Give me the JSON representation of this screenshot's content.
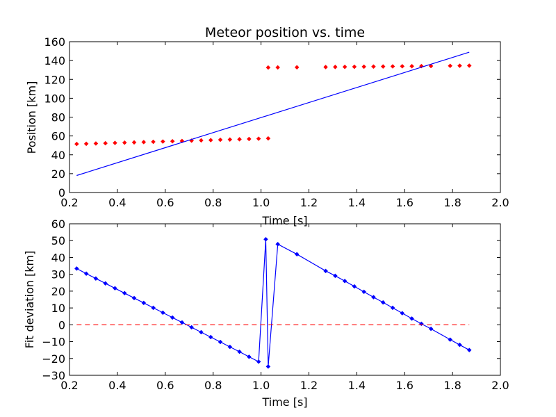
{
  "chart_data": [
    {
      "type": "line",
      "title": "Meteor position vs. time",
      "xlabel": "Time [s]",
      "ylabel": "Position [km]",
      "xlim": [
        0.2,
        2.0
      ],
      "ylim": [
        0,
        160
      ],
      "xticks": [
        "0.2",
        "0.4",
        "0.6",
        "0.8",
        "1.0",
        "1.2",
        "1.4",
        "1.6",
        "1.8",
        "2.0"
      ],
      "yticks": [
        "0",
        "20",
        "40",
        "60",
        "80",
        "100",
        "120",
        "140",
        "160"
      ],
      "grid": false,
      "legend": "none",
      "series": [
        {
          "style": "markers",
          "color": "#ff0000",
          "marker": "diamond",
          "x": [
            0.23,
            0.27,
            0.31,
            0.35,
            0.39,
            0.43,
            0.47,
            0.51,
            0.55,
            0.59,
            0.63,
            0.67,
            0.71,
            0.75,
            0.79,
            0.83,
            0.87,
            0.91,
            0.95,
            0.99,
            1.03,
            1.03,
            1.07,
            1.15,
            1.27,
            1.31,
            1.35,
            1.39,
            1.43,
            1.47,
            1.51,
            1.55,
            1.59,
            1.63,
            1.67,
            1.71,
            1.79,
            1.83,
            1.87
          ],
          "y": [
            51.5,
            51.7,
            52.0,
            52.3,
            52.6,
            52.9,
            53.2,
            53.5,
            53.8,
            54.1,
            54.4,
            54.7,
            55.0,
            55.3,
            55.6,
            55.9,
            56.2,
            56.5,
            56.8,
            57.1,
            57.4,
            132.6,
            132.7,
            132.8,
            133.1,
            133.2,
            133.3,
            133.4,
            133.5,
            133.6,
            133.7,
            133.8,
            133.9,
            134.0,
            134.1,
            134.2,
            134.4,
            134.5,
            134.6
          ]
        },
        {
          "style": "line",
          "color": "#0000ff",
          "x": [
            0.23,
            1.87
          ],
          "y": [
            18.1,
            148.9
          ]
        }
      ]
    },
    {
      "type": "line",
      "title": "",
      "xlabel": "Time [s]",
      "ylabel": "Fit deviation [km]",
      "xlim": [
        0.2,
        2.0
      ],
      "ylim": [
        -30,
        60
      ],
      "xticks": [
        "0.2",
        "0.4",
        "0.6",
        "0.8",
        "1.0",
        "1.2",
        "1.4",
        "1.6",
        "1.8",
        "2.0"
      ],
      "yticks": [
        "−30",
        "−20",
        "−10",
        "0",
        "10",
        "20",
        "30",
        "40",
        "50",
        "60"
      ],
      "grid": false,
      "legend": "none",
      "series": [
        {
          "style": "line-markers",
          "color": "#0000ff",
          "marker": "diamond",
          "x": [
            0.23,
            0.27,
            0.31,
            0.35,
            0.39,
            0.43,
            0.47,
            0.51,
            0.55,
            0.59,
            0.63,
            0.67,
            0.71,
            0.75,
            0.79,
            0.83,
            0.87,
            0.91,
            0.95,
            0.99,
            1.02,
            1.03,
            1.07,
            1.15,
            1.27,
            1.31,
            1.35,
            1.39,
            1.43,
            1.47,
            1.51,
            1.55,
            1.59,
            1.63,
            1.67,
            1.71,
            1.79,
            1.83,
            1.87
          ],
          "y": [
            33.4,
            30.4,
            27.5,
            24.6,
            21.7,
            18.8,
            15.9,
            13.0,
            10.1,
            7.2,
            4.3,
            1.4,
            -1.5,
            -4.4,
            -7.3,
            -10.2,
            -13.1,
            -16.0,
            -19.0,
            -21.9,
            50.8,
            -24.8,
            47.9,
            41.9,
            32.0,
            29.1,
            26.0,
            22.8,
            19.6,
            16.4,
            13.3,
            10.1,
            6.9,
            3.7,
            0.6,
            -2.4,
            -8.8,
            -11.9,
            -15.0
          ]
        },
        {
          "style": "dashed",
          "color": "#ff0000",
          "x": [
            0.23,
            1.87
          ],
          "y": [
            0,
            0
          ]
        }
      ]
    }
  ]
}
